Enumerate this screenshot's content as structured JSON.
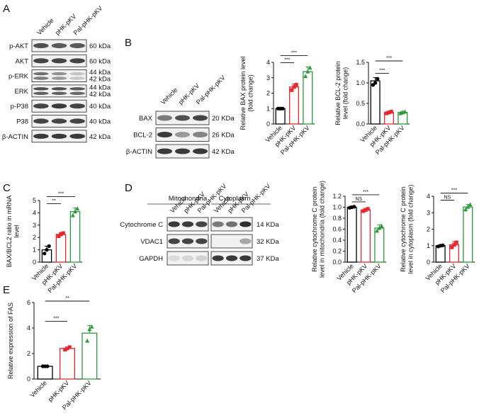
{
  "panels": {
    "A": {
      "label": "A",
      "lanes": [
        "Vehicle",
        "pHK-pKV",
        "Pal-pHK-pKV"
      ],
      "rows": [
        {
          "name": "p-AKT",
          "kda": "60 kDa",
          "kda2": ""
        },
        {
          "name": "AKT",
          "kda": "60 kDa",
          "kda2": ""
        },
        {
          "name": "p-ERK",
          "kda": "44 kDa",
          "kda2": "42 kDa"
        },
        {
          "name": "ERK",
          "kda": "44 kDa",
          "kda2": "42 kDa"
        },
        {
          "name": "p-P38",
          "kda": "40 kDa",
          "kda2": ""
        },
        {
          "name": "P38",
          "kda": "40 kDa",
          "kda2": ""
        },
        {
          "name": "β-ACTIN",
          "kda": "42 kDa",
          "kda2": ""
        }
      ]
    },
    "B": {
      "label": "B",
      "lanes": [
        "Vehicle",
        "pHK-pKV",
        "Pal-pHK-pKV"
      ],
      "rows": [
        {
          "name": "BAX",
          "kda": "20 KDa"
        },
        {
          "name": "BCL-2",
          "kda": "26 KDa"
        },
        {
          "name": "β-ACTIN",
          "kda": "42 KDa"
        }
      ]
    },
    "C": {
      "label": "C"
    },
    "D": {
      "label": "D",
      "groups": [
        "Mitochondria",
        "Cytoplasm"
      ],
      "lanes": [
        "Vehicle",
        "pHK-pKV",
        "Pal-pHK-pKV"
      ],
      "rows": [
        {
          "name": "Cytochrome C",
          "kda": "14 KDa"
        },
        {
          "name": "VDAC1",
          "kda": "32 KDa"
        },
        {
          "name": "GAPDH",
          "kda": "37 KDa"
        }
      ]
    },
    "E": {
      "label": "E"
    }
  },
  "colors": {
    "vehicle": "#000000",
    "phk": "#e8262b",
    "pal": "#2a9a3a"
  },
  "chart_data": [
    {
      "id": "B1",
      "type": "bar",
      "categories": [
        "Vehicle",
        "pHK-pKV",
        "Pal-pHK-pKV"
      ],
      "values": [
        1.0,
        2.4,
        3.4
      ],
      "errors": [
        0.05,
        0.2,
        0.3
      ],
      "points": [
        [
          1.0,
          1.0,
          1.0
        ],
        [
          2.2,
          2.4,
          2.55
        ],
        [
          3.1,
          3.4,
          3.65
        ]
      ],
      "markers": [
        "circle",
        "square",
        "triangle"
      ],
      "ylabel": "Relative BAX protein level (fold change)",
      "ylabel_lines": [
        "Relative BAX protein level",
        "(fold change)"
      ],
      "ylim": [
        0,
        4
      ],
      "yticks": [
        0,
        1,
        2,
        3,
        4
      ],
      "ytick_labels": [
        "0",
        "1",
        "2",
        "3",
        "4"
      ],
      "significance": [
        {
          "from": 0,
          "to": 1,
          "text": "***"
        },
        {
          "from": 0,
          "to": 2,
          "text": "***"
        }
      ]
    },
    {
      "id": "B2",
      "type": "bar",
      "categories": [
        "Vehicle",
        "pHK-pKV",
        "Pal-pHK-pKV"
      ],
      "values": [
        1.05,
        0.28,
        0.28
      ],
      "errors": [
        0.08,
        0.03,
        0.03
      ],
      "points": [
        [
          0.95,
          1.0,
          1.1
        ],
        [
          0.26,
          0.28,
          0.3
        ],
        [
          0.26,
          0.28,
          0.3
        ]
      ],
      "markers": [
        "circle",
        "square",
        "triangle"
      ],
      "ylabel": "Relative BCL-2 protein level (fold change)",
      "ylabel_lines": [
        "Relative BCL-2 protein",
        "level (fold change)"
      ],
      "ylim": [
        0,
        1.5
      ],
      "yticks": [
        0,
        0.5,
        1.0,
        1.5
      ],
      "ytick_labels": [
        "0.0",
        "0.5",
        "1.0",
        "1.5"
      ],
      "significance": [
        {
          "from": 0,
          "to": 1,
          "text": "***"
        },
        {
          "from": 0,
          "to": 2,
          "text": "***"
        }
      ]
    },
    {
      "id": "C",
      "type": "bar",
      "categories": [
        "Vehicle",
        "pHK-pKV",
        "Pal-pHK-pKV"
      ],
      "values": [
        1.0,
        2.25,
        4.1
      ],
      "errors": [
        0.3,
        0.15,
        0.3
      ],
      "points": [
        [
          0.7,
          1.0,
          1.3
        ],
        [
          2.1,
          2.25,
          2.35
        ],
        [
          3.8,
          4.1,
          4.35
        ]
      ],
      "markers": [
        "circle",
        "square",
        "triangle"
      ],
      "ylabel": "BAX/BCL2 ratio in mRNA level",
      "ylabel_lines": [
        "BAX/BCL2 ratio in mRNA",
        "level"
      ],
      "ylim": [
        0,
        5
      ],
      "yticks": [
        0,
        1,
        2,
        3,
        4,
        5
      ],
      "ytick_labels": [
        "0",
        "1",
        "2",
        "3",
        "4",
        "5"
      ],
      "significance": [
        {
          "from": 0,
          "to": 1,
          "text": "**"
        },
        {
          "from": 0,
          "to": 2,
          "text": "***"
        }
      ]
    },
    {
      "id": "D1",
      "type": "bar",
      "categories": [
        "Vehicle",
        "pHK-pKV",
        "Pal-pHK-pKV"
      ],
      "values": [
        1.0,
        0.95,
        0.62
      ],
      "errors": [
        0.02,
        0.03,
        0.06
      ],
      "points": [
        [
          0.99,
          1.0,
          1.01
        ],
        [
          0.93,
          0.95,
          0.97
        ],
        [
          0.57,
          0.62,
          0.66
        ]
      ],
      "markers": [
        "circle",
        "square",
        "triangle"
      ],
      "ylabel": "Relative cytochrome C protein level in mitochondria (fold change)",
      "ylabel_lines": [
        "Relative cytochrome C protein",
        "level in mitochondria (fold change)"
      ],
      "ylim": [
        0,
        1.2
      ],
      "yticks": [
        0,
        0.2,
        0.4,
        0.6,
        0.8,
        1.0,
        1.2
      ],
      "ytick_labels": [
        "0.0",
        "0.2",
        "0.4",
        "0.6",
        "0.8",
        "1.0",
        "1.2"
      ],
      "significance": [
        {
          "from": 0,
          "to": 1,
          "text": "NS"
        },
        {
          "from": 0,
          "to": 2,
          "text": "***"
        }
      ]
    },
    {
      "id": "D2",
      "type": "bar",
      "categories": [
        "Vehicle",
        "pHK-pKV",
        "Pal-pHK-pKV"
      ],
      "values": [
        1.0,
        1.05,
        3.35
      ],
      "errors": [
        0.05,
        0.2,
        0.15
      ],
      "points": [
        [
          0.95,
          1.0,
          1.02
        ],
        [
          0.9,
          1.05,
          1.2
        ],
        [
          3.2,
          3.35,
          3.5
        ]
      ],
      "markers": [
        "circle",
        "square",
        "triangle"
      ],
      "ylabel": "Relative cytochrome C protein level in cytoplasm (fold change)",
      "ylabel_lines": [
        "Relative cytochrome C protein",
        "level in cytoplasm (fold change)"
      ],
      "ylim": [
        0,
        4
      ],
      "yticks": [
        0,
        1,
        2,
        3,
        4
      ],
      "ytick_labels": [
        "0",
        "1",
        "2",
        "3",
        "4"
      ],
      "significance": [
        {
          "from": 0,
          "to": 1,
          "text": "NS"
        },
        {
          "from": 0,
          "to": 2,
          "text": "***"
        }
      ]
    },
    {
      "id": "E",
      "type": "bar",
      "categories": [
        "Vehicle",
        "pHK-pKV",
        "Pal-pHK-pKV"
      ],
      "values": [
        1.0,
        2.4,
        3.6
      ],
      "errors": [
        0.03,
        0.1,
        0.6
      ],
      "points": [
        [
          1.0,
          1.0,
          1.0
        ],
        [
          2.3,
          2.4,
          2.5
        ],
        [
          3.0,
          3.9,
          4.1
        ]
      ],
      "markers": [
        "circle",
        "square",
        "triangle"
      ],
      "ylabel": "Relative expression of FAS",
      "ylabel_lines": [
        "Relative expression of FAS"
      ],
      "ylim": [
        0,
        6
      ],
      "yticks": [
        0,
        2,
        4,
        6
      ],
      "ytick_labels": [
        "0",
        "2",
        "4",
        "6"
      ],
      "significance": [
        {
          "from": 0,
          "to": 1,
          "text": "***"
        },
        {
          "from": 0,
          "to": 2,
          "text": "**"
        }
      ]
    }
  ]
}
